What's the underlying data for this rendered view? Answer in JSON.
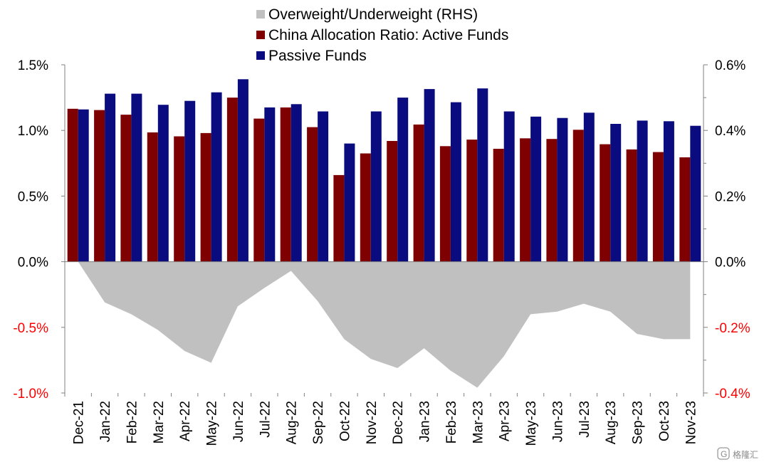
{
  "colors": {
    "active": "#7f0000",
    "passive": "#0b0b80",
    "area": "#c0c0c0",
    "axis": "#808080",
    "negative": "#ff0000",
    "positive": "#000000"
  },
  "watermark": "格隆汇",
  "chart_data": {
    "type": "bar",
    "categories": [
      "Dec-21",
      "Jan-22",
      "Feb-22",
      "Mar-22",
      "Apr-22",
      "May-22",
      "Jun-22",
      "Jul-22",
      "Aug-22",
      "Sep-22",
      "Oct-22",
      "Nov-22",
      "Dec-22",
      "Jan-23",
      "Feb-23",
      "Mar-23",
      "Apr-23",
      "May-23",
      "Jun-23",
      "Jul-23",
      "Aug-23",
      "Sep-23",
      "Oct-23",
      "Nov-23"
    ],
    "legend": [
      {
        "key": "overweight",
        "label": "Overweight/Underweight (RHS)"
      },
      {
        "key": "active",
        "label": "China Allocation Ratio: Active Funds"
      },
      {
        "key": "passive",
        "label": "Passive Funds"
      }
    ],
    "legend_position": "top-center",
    "series": [
      {
        "name": "China Allocation Ratio: Active Funds",
        "axis": "left",
        "type": "bar",
        "values": [
          1.165,
          1.155,
          1.12,
          0.985,
          0.955,
          0.98,
          1.25,
          1.09,
          1.175,
          1.025,
          0.66,
          0.825,
          0.92,
          1.045,
          0.88,
          0.93,
          0.86,
          0.94,
          0.935,
          1.005,
          0.895,
          0.855,
          0.835,
          0.795
        ]
      },
      {
        "name": "Passive Funds",
        "axis": "left",
        "type": "bar",
        "values": [
          1.16,
          1.28,
          1.28,
          1.195,
          1.225,
          1.29,
          1.39,
          1.175,
          1.2,
          1.145,
          0.9,
          1.145,
          1.25,
          1.315,
          1.215,
          1.32,
          1.145,
          1.105,
          1.095,
          1.135,
          1.05,
          1.075,
          1.07,
          1.035
        ]
      },
      {
        "name": "Overweight/Underweight (RHS)",
        "axis": "right",
        "type": "area",
        "values": [
          0.0,
          -0.124,
          -0.16,
          -0.208,
          -0.272,
          -0.308,
          -0.136,
          -0.08,
          -0.028,
          -0.12,
          -0.236,
          -0.296,
          -0.324,
          -0.264,
          -0.332,
          -0.384,
          -0.288,
          -0.16,
          -0.152,
          -0.128,
          -0.152,
          -0.22,
          -0.236,
          -0.236
        ]
      }
    ],
    "left_axis": {
      "min": -1.0,
      "max": 1.5,
      "step": 0.5,
      "tick_labels": [
        "-1.0%",
        "-0.5%",
        "0.0%",
        "0.5%",
        "1.0%",
        "1.5%"
      ]
    },
    "right_axis": {
      "min": -0.4,
      "max": 0.6,
      "step": 0.2,
      "tick_labels": [
        "-0.4%",
        "-0.2%",
        "0.0%",
        "0.2%",
        "0.4%",
        "0.6%"
      ]
    },
    "grid": false
  }
}
